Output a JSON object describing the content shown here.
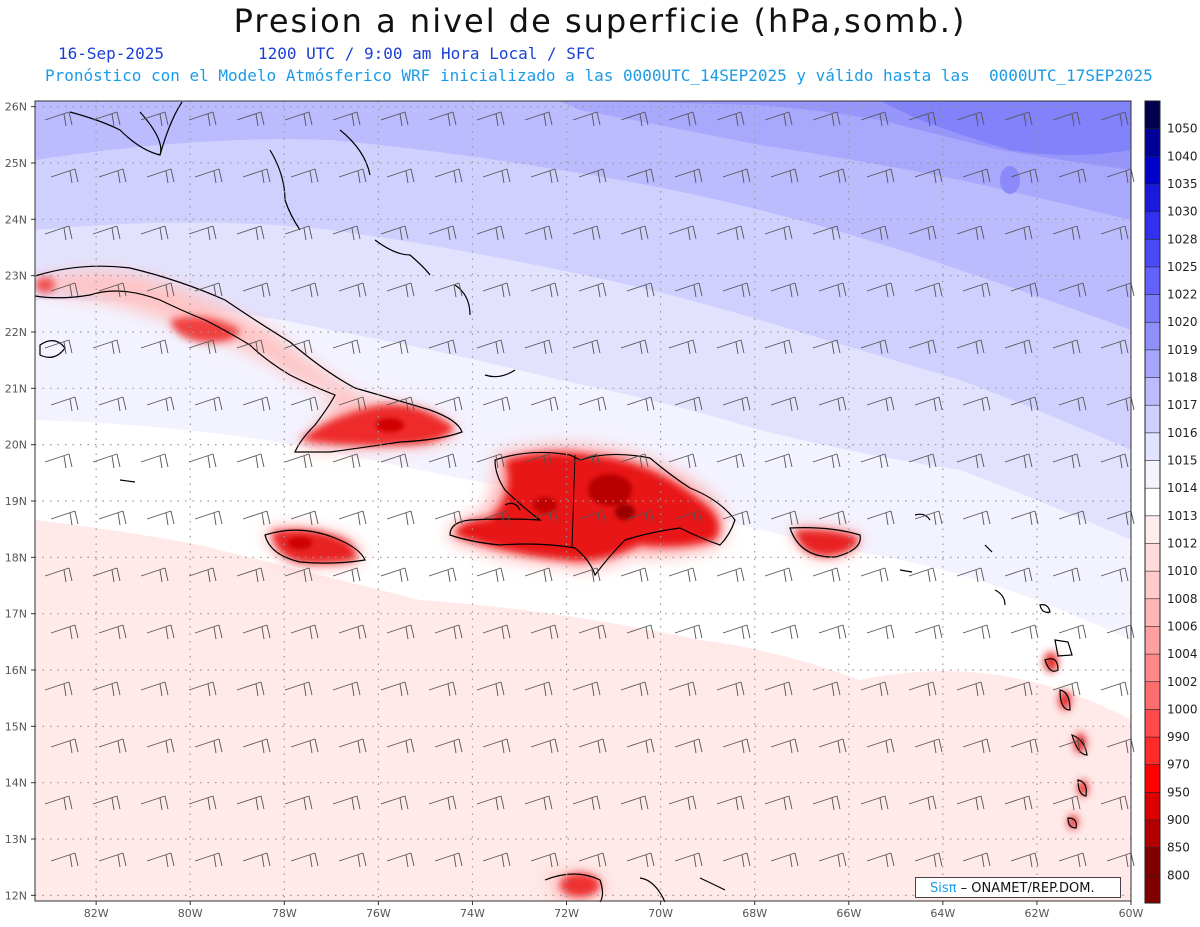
{
  "title": "Presion a nivel de superficie (hPa,somb.)",
  "subtitle": {
    "date": "16-Sep-2025",
    "time": "1200 UTC / 9:00 am Hora Local / SFC",
    "init": "Pronóstico con el Modelo Atmósferico WRF inicializado a las 0000UTC_14SEP2025 y válido hasta las  0000UTC_17SEP2025"
  },
  "map": {
    "lat_labels": [
      "26N",
      "25N",
      "24N",
      "23N",
      "22N",
      "21N",
      "20N",
      "19N",
      "18N",
      "17N",
      "16N",
      "15N",
      "14N",
      "13N",
      "12N"
    ],
    "lon_labels": [
      "82W",
      "80W",
      "78W",
      "76W",
      "74W",
      "72W",
      "70W",
      "68W",
      "66W",
      "64W",
      "62W",
      "60W"
    ],
    "lat_range": [
      11.9,
      26.1
    ],
    "lon_range": [
      -83.3,
      -60.0
    ]
  },
  "colorbar": {
    "levels": [
      "1050",
      "1040",
      "1035",
      "1030",
      "1028",
      "1025",
      "1022",
      "1020",
      "1019",
      "1018",
      "1017",
      "1016",
      "1015",
      "1014",
      "1013",
      "1012",
      "1010",
      "1008",
      "1006",
      "1004",
      "1002",
      "1000",
      "990",
      "970",
      "950",
      "900",
      "850",
      "800"
    ],
    "colors": [
      "#00004e",
      "#000098",
      "#0000cc",
      "#1a1add",
      "#3030ee",
      "#4a4af5",
      "#6262fa",
      "#7a7afb",
      "#9090fb",
      "#a6a6fc",
      "#bbbbfd",
      "#cfd0fe",
      "#e2e3fe",
      "#f4f4ff",
      "#ffffff",
      "#ffecec",
      "#ffdcdc",
      "#ffcaca",
      "#ffb6b6",
      "#ffa0a0",
      "#ff8888",
      "#ff6e6e",
      "#ff4a4a",
      "#ff2a2a",
      "#ff0000",
      "#dd0000",
      "#b20000",
      "#800000"
    ]
  },
  "credit": {
    "brand": "Sisπ",
    "org": " – ONAMET/REP.DOM."
  }
}
